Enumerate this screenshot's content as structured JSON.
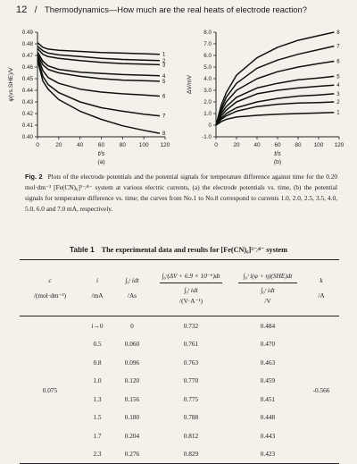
{
  "header": {
    "page_number": "12",
    "running_title": "Thermodynamics—How much are the real heats of electrode reaction?"
  },
  "chart_data": [
    {
      "type": "line",
      "panel_label": "(a)",
      "xlabel": "t/s",
      "ylabel": "φ(vs.SHE)/V",
      "xlim": [
        0,
        120
      ],
      "ylim": [
        0.4,
        0.49
      ],
      "xticks": [
        "0",
        "20",
        "40",
        "60",
        "80",
        "100",
        "120"
      ],
      "yticks": [
        "0.40",
        "0.41",
        "0.42",
        "0.43",
        "0.44",
        "0.45",
        "0.46",
        "0.47",
        "0.48",
        "0.49"
      ],
      "grid": false,
      "series": [
        {
          "name": "1",
          "x": [
            0,
            5,
            10,
            20,
            40,
            60,
            80,
            100,
            115
          ],
          "values": [
            0.481,
            0.477,
            0.4755,
            0.4745,
            0.4735,
            0.4725,
            0.472,
            0.4715,
            0.471
          ]
        },
        {
          "name": "2",
          "x": [
            0,
            5,
            10,
            20,
            40,
            60,
            80,
            100,
            115
          ],
          "values": [
            0.478,
            0.474,
            0.472,
            0.4705,
            0.469,
            0.4675,
            0.4665,
            0.466,
            0.4655
          ]
        },
        {
          "name": "3",
          "x": [
            0,
            5,
            10,
            20,
            40,
            60,
            80,
            100,
            115
          ],
          "values": [
            0.476,
            0.471,
            0.469,
            0.4675,
            0.4655,
            0.464,
            0.463,
            0.4625,
            0.462
          ]
        },
        {
          "name": "4",
          "x": [
            0,
            5,
            10,
            20,
            40,
            60,
            80,
            100,
            115
          ],
          "values": [
            0.473,
            0.465,
            0.461,
            0.458,
            0.4555,
            0.4545,
            0.4535,
            0.453,
            0.4525
          ]
        },
        {
          "name": "5",
          "x": [
            0,
            5,
            10,
            20,
            40,
            60,
            80,
            100,
            115
          ],
          "values": [
            0.471,
            0.462,
            0.458,
            0.455,
            0.452,
            0.45,
            0.4488,
            0.4482,
            0.4478
          ]
        },
        {
          "name": "6",
          "x": [
            0,
            5,
            10,
            20,
            40,
            60,
            80,
            100,
            115
          ],
          "values": [
            0.47,
            0.457,
            0.451,
            0.446,
            0.441,
            0.4385,
            0.437,
            0.436,
            0.435
          ]
        },
        {
          "name": "7",
          "x": [
            0,
            5,
            10,
            20,
            40,
            60,
            80,
            100,
            115
          ],
          "values": [
            0.468,
            0.452,
            0.445,
            0.438,
            0.43,
            0.425,
            0.422,
            0.4195,
            0.418
          ]
        },
        {
          "name": "8",
          "x": [
            0,
            5,
            10,
            20,
            40,
            60,
            80,
            100,
            115
          ],
          "values": [
            0.466,
            0.448,
            0.441,
            0.432,
            0.422,
            0.415,
            0.4095,
            0.4055,
            0.403
          ]
        }
      ]
    },
    {
      "type": "line",
      "panel_label": "(b)",
      "xlabel": "t/s",
      "ylabel": "ΔV/mV",
      "xlim": [
        0,
        120
      ],
      "ylim": [
        -1.0,
        8.0
      ],
      "xticks": [
        "0",
        "20",
        "40",
        "60",
        "80",
        "100",
        "120"
      ],
      "yticks": [
        "-1.0",
        "0",
        "1.0",
        "2.0",
        "3.0",
        "4.0",
        "5.0",
        "6.0",
        "7.0",
        "8.0"
      ],
      "grid": false,
      "series": [
        {
          "name": "1",
          "x": [
            0,
            5,
            10,
            20,
            40,
            60,
            80,
            100,
            115
          ],
          "values": [
            0,
            0.3,
            0.5,
            0.7,
            0.85,
            0.95,
            1.0,
            1.05,
            1.1
          ]
        },
        {
          "name": "2",
          "x": [
            0,
            5,
            10,
            20,
            40,
            60,
            80,
            100,
            115
          ],
          "values": [
            0,
            0.5,
            0.8,
            1.2,
            1.6,
            1.8,
            1.9,
            1.95,
            2.0
          ]
        },
        {
          "name": "3",
          "x": [
            0,
            5,
            10,
            20,
            40,
            60,
            80,
            100,
            115
          ],
          "values": [
            0,
            0.6,
            1.0,
            1.5,
            2.0,
            2.3,
            2.5,
            2.6,
            2.7
          ]
        },
        {
          "name": "4",
          "x": [
            0,
            5,
            10,
            20,
            40,
            60,
            80,
            100,
            115
          ],
          "values": [
            0,
            0.8,
            1.3,
            2.0,
            2.7,
            3.0,
            3.2,
            3.35,
            3.45
          ]
        },
        {
          "name": "5",
          "x": [
            0,
            5,
            10,
            20,
            40,
            60,
            80,
            100,
            115
          ],
          "values": [
            0,
            1.0,
            1.6,
            2.4,
            3.2,
            3.6,
            3.9,
            4.05,
            4.2
          ]
        },
        {
          "name": "6",
          "x": [
            0,
            5,
            10,
            20,
            40,
            60,
            80,
            100,
            115
          ],
          "values": [
            0,
            1.2,
            2.0,
            3.0,
            4.0,
            4.6,
            5.0,
            5.3,
            5.5
          ]
        },
        {
          "name": "7",
          "x": [
            0,
            5,
            10,
            20,
            40,
            60,
            80,
            100,
            115
          ],
          "values": [
            0,
            1.4,
            2.4,
            3.6,
            4.9,
            5.6,
            6.1,
            6.5,
            6.8
          ]
        },
        {
          "name": "8",
          "x": [
            0,
            5,
            10,
            20,
            40,
            60,
            80,
            100,
            115
          ],
          "values": [
            0,
            1.7,
            2.8,
            4.3,
            5.8,
            6.7,
            7.3,
            7.7,
            8.0
          ]
        }
      ]
    }
  ],
  "caption": {
    "label": "Fig. 2",
    "text": "Plots of the electrode potentials and the potential signals for temperature difference against time for the 0.20 mol·dm⁻³ [Fe(CN)₆]³⁻⁄⁴⁻ system at various electric currents, (a) the electrode potentials vs. time, (b) the potential signals for temperature difference vs. time; the curves from No.1 to No.8 correspond to currents 1.0, 2.0, 2.5, 3.5, 4.0, 5.0, 6.0 and 7.0 mA, respectively."
  },
  "table": {
    "label": "Table 1",
    "title": "The experimental data and results for [Fe(CN)₆]³⁻⁄⁴⁻ system",
    "headers": {
      "c_top": "c",
      "c_bottom": "/(mol·dm⁻³)",
      "i_top": "i",
      "i_bottom": "/mA",
      "q_top": "∫₀ᵗ idt",
      "q_bottom": "/As",
      "dv_top": "∫₀ᵗ(ΔV + 6.9 × 10⁻⁶)dt",
      "dv_mid": "∫₀ᵗ idt",
      "dv_bottom": "/(V·A⁻¹)",
      "phi_top": "∫₀ᵗ i(φ + η)(SHE)dt",
      "phi_mid": "∫₀ᵗ idt",
      "phi_bottom": "/V",
      "k_top": "k",
      "k_bottom": "/A"
    },
    "concentration": "0.075",
    "k_value": "-0.566",
    "rows": [
      {
        "i": "i→0",
        "q": "0",
        "dv": "0.732",
        "phi": "0.484"
      },
      {
        "i": "0.5",
        "q": "0.060",
        "dv": "0.761",
        "phi": "0.470"
      },
      {
        "i": "0.8",
        "q": "0.096",
        "dv": "0.763",
        "phi": "0.463"
      },
      {
        "i": "1.0",
        "q": "0.120",
        "dv": "0.770",
        "phi": "0.459"
      },
      {
        "i": "1.3",
        "q": "0.156",
        "dv": "0.775",
        "phi": "0.451"
      },
      {
        "i": "1.5",
        "q": "0.180",
        "dv": "0.788",
        "phi": "0.448"
      },
      {
        "i": "1.7",
        "q": "0.204",
        "dv": "0.812",
        "phi": "0.443"
      },
      {
        "i": "2.3",
        "q": "0.276",
        "dv": "0.829",
        "phi": "0.423"
      }
    ]
  }
}
